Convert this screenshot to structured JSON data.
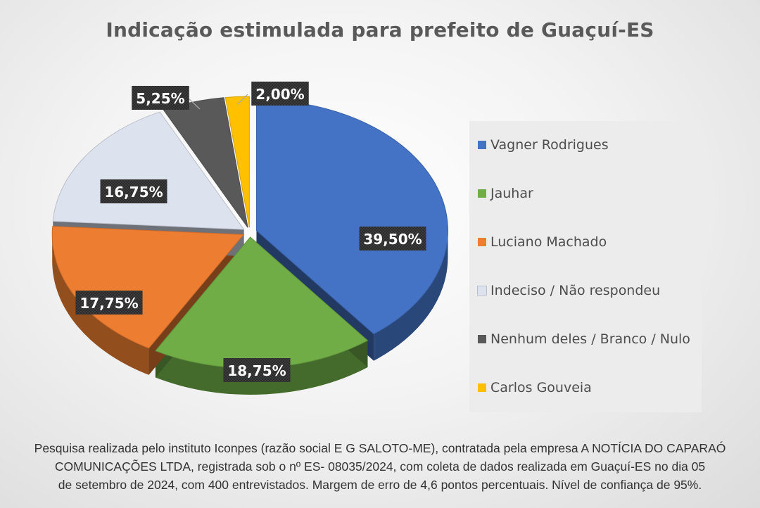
{
  "title": "Indicação estimulada para prefeito de Guaçuí-ES",
  "chart_data": {
    "type": "pie",
    "title": "Indicação estimulada para prefeito de Guaçuí-ES",
    "categories": [
      "Vagner Rodrigues",
      "Jauhar",
      "Luciano Machado",
      "Indeciso / Não respondeu",
      "Nenhum deles / Branco / Nulo",
      "Carlos Gouveia"
    ],
    "values": [
      39.5,
      18.75,
      17.75,
      16.75,
      5.25,
      2.0
    ],
    "labels": [
      "39,50%",
      "18,75%",
      "17,75%",
      "16,75%",
      "5,25%",
      "2,00%"
    ],
    "colors": [
      "#4472C4",
      "#70AD47",
      "#ED7D31",
      "#DCE2EE",
      "#595959",
      "#FFC000"
    ],
    "legend_position": "right",
    "style": "3d-exploded"
  },
  "legend": [
    {
      "label": "Vagner Rodrigues",
      "color": "#4472C4"
    },
    {
      "label": "Jauhar",
      "color": "#70AD47"
    },
    {
      "label": "Luciano Machado",
      "color": "#ED7D31"
    },
    {
      "label": "Indeciso / Não respondeu",
      "color": "#DCE2EE"
    },
    {
      "label": "Nenhum deles / Branco / Nulo",
      "color": "#595959"
    },
    {
      "label": "Carlos Gouveia",
      "color": "#FFC000"
    }
  ],
  "caption": {
    "line1": "Pesquisa realizada pelo instituto Iconpes (razão social E G SALOTO-ME), contratada pela empresa A NOTÍCIA DO CAPARAÓ",
    "line2": "COMUNICAÇÕES LTDA, registrada sob o nº ES- 08035/2024, com coleta de dados realizada em Guaçuí-ES no dia 05",
    "line3": "de setembro de 2024, com 400 entrevistados. Margem de erro de 4,6 pontos percentuais. Nível de confiança de 95%."
  }
}
